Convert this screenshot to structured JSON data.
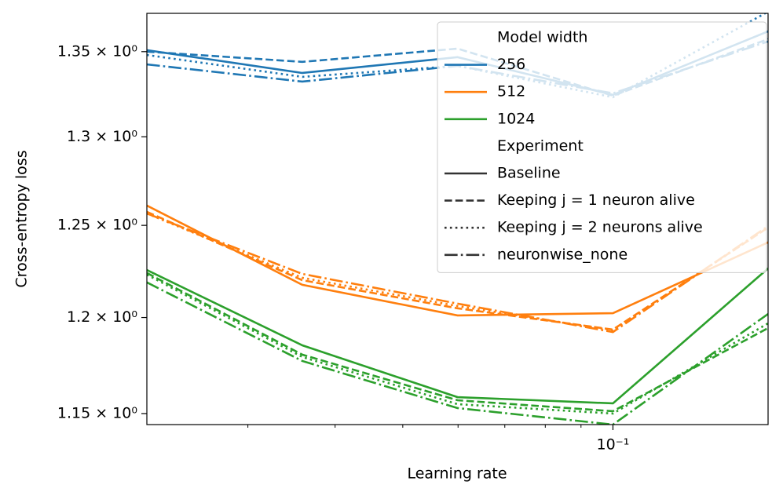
{
  "chart_data": {
    "type": "line",
    "xlabel": "Learning rate",
    "ylabel": "Cross-entropy loss",
    "log_x": true,
    "log_y": true,
    "x": [
      0.0215,
      0.0359,
      0.0599,
      0.1,
      0.1668
    ],
    "xlim": [
      0.0215,
      0.1668
    ],
    "xticks": [
      {
        "value": 0.1,
        "label": "10⁻¹"
      }
    ],
    "xminor_ticks": [
      0.03,
      0.04,
      0.05,
      0.06,
      0.07,
      0.08,
      0.09
    ],
    "ylim": [
      1.1444,
      1.3731
    ],
    "yticks": [
      {
        "value": 1.15,
        "label": "1.15 × 10⁰"
      },
      {
        "value": 1.2,
        "label": "1.2 × 10⁰"
      },
      {
        "value": 1.25,
        "label": "1.25 × 10⁰"
      },
      {
        "value": 1.3,
        "label": "1.3 × 10⁰"
      },
      {
        "value": 1.35,
        "label": "1.35 × 10⁰"
      }
    ],
    "legend_loc": "upper right",
    "hue_title": "Model width",
    "style_title": "Experiment",
    "styles": [
      {
        "name": "Baseline",
        "dash": "solid"
      },
      {
        "name": "Keeping j = 1 neuron alive",
        "dash": "dashed"
      },
      {
        "name": "Keeping j = 2 neurons alive",
        "dash": "dotted"
      },
      {
        "name": "neuronwise_none",
        "dash": "dashdot"
      }
    ],
    "groups": [
      {
        "name": "256",
        "color": "#1f77b4",
        "lines": [
          [
            1.3509,
            1.3373,
            1.3467,
            1.3244,
            1.3622
          ],
          [
            1.35,
            1.3439,
            1.3518,
            1.3239,
            1.3575
          ],
          [
            1.348,
            1.335,
            1.3415,
            1.323,
            1.3741
          ],
          [
            1.3424,
            1.3322,
            1.3415,
            1.3253,
            1.3561
          ]
        ]
      },
      {
        "name": "512",
        "color": "#ff7f0e",
        "lines": [
          [
            1.261,
            1.2175,
            1.2011,
            1.2023,
            1.2406
          ],
          [
            1.2575,
            1.22,
            1.2049,
            1.1936,
            1.2488
          ],
          [
            1.2566,
            1.2213,
            1.2061,
            1.1932,
            1.2488
          ],
          [
            1.2566,
            1.2234,
            1.2074,
            1.1923,
            1.2496
          ]
        ]
      },
      {
        "name": "1024",
        "color": "#2ca02c",
        "lines": [
          [
            1.2255,
            1.1853,
            1.1584,
            1.1552,
            1.2264
          ],
          [
            1.2239,
            1.1804,
            1.1568,
            1.1512,
            1.1944
          ],
          [
            1.223,
            1.1792,
            1.1548,
            1.15,
            1.1969
          ],
          [
            1.2188,
            1.1771,
            1.1528,
            1.1444,
            1.2019
          ]
        ]
      }
    ]
  }
}
